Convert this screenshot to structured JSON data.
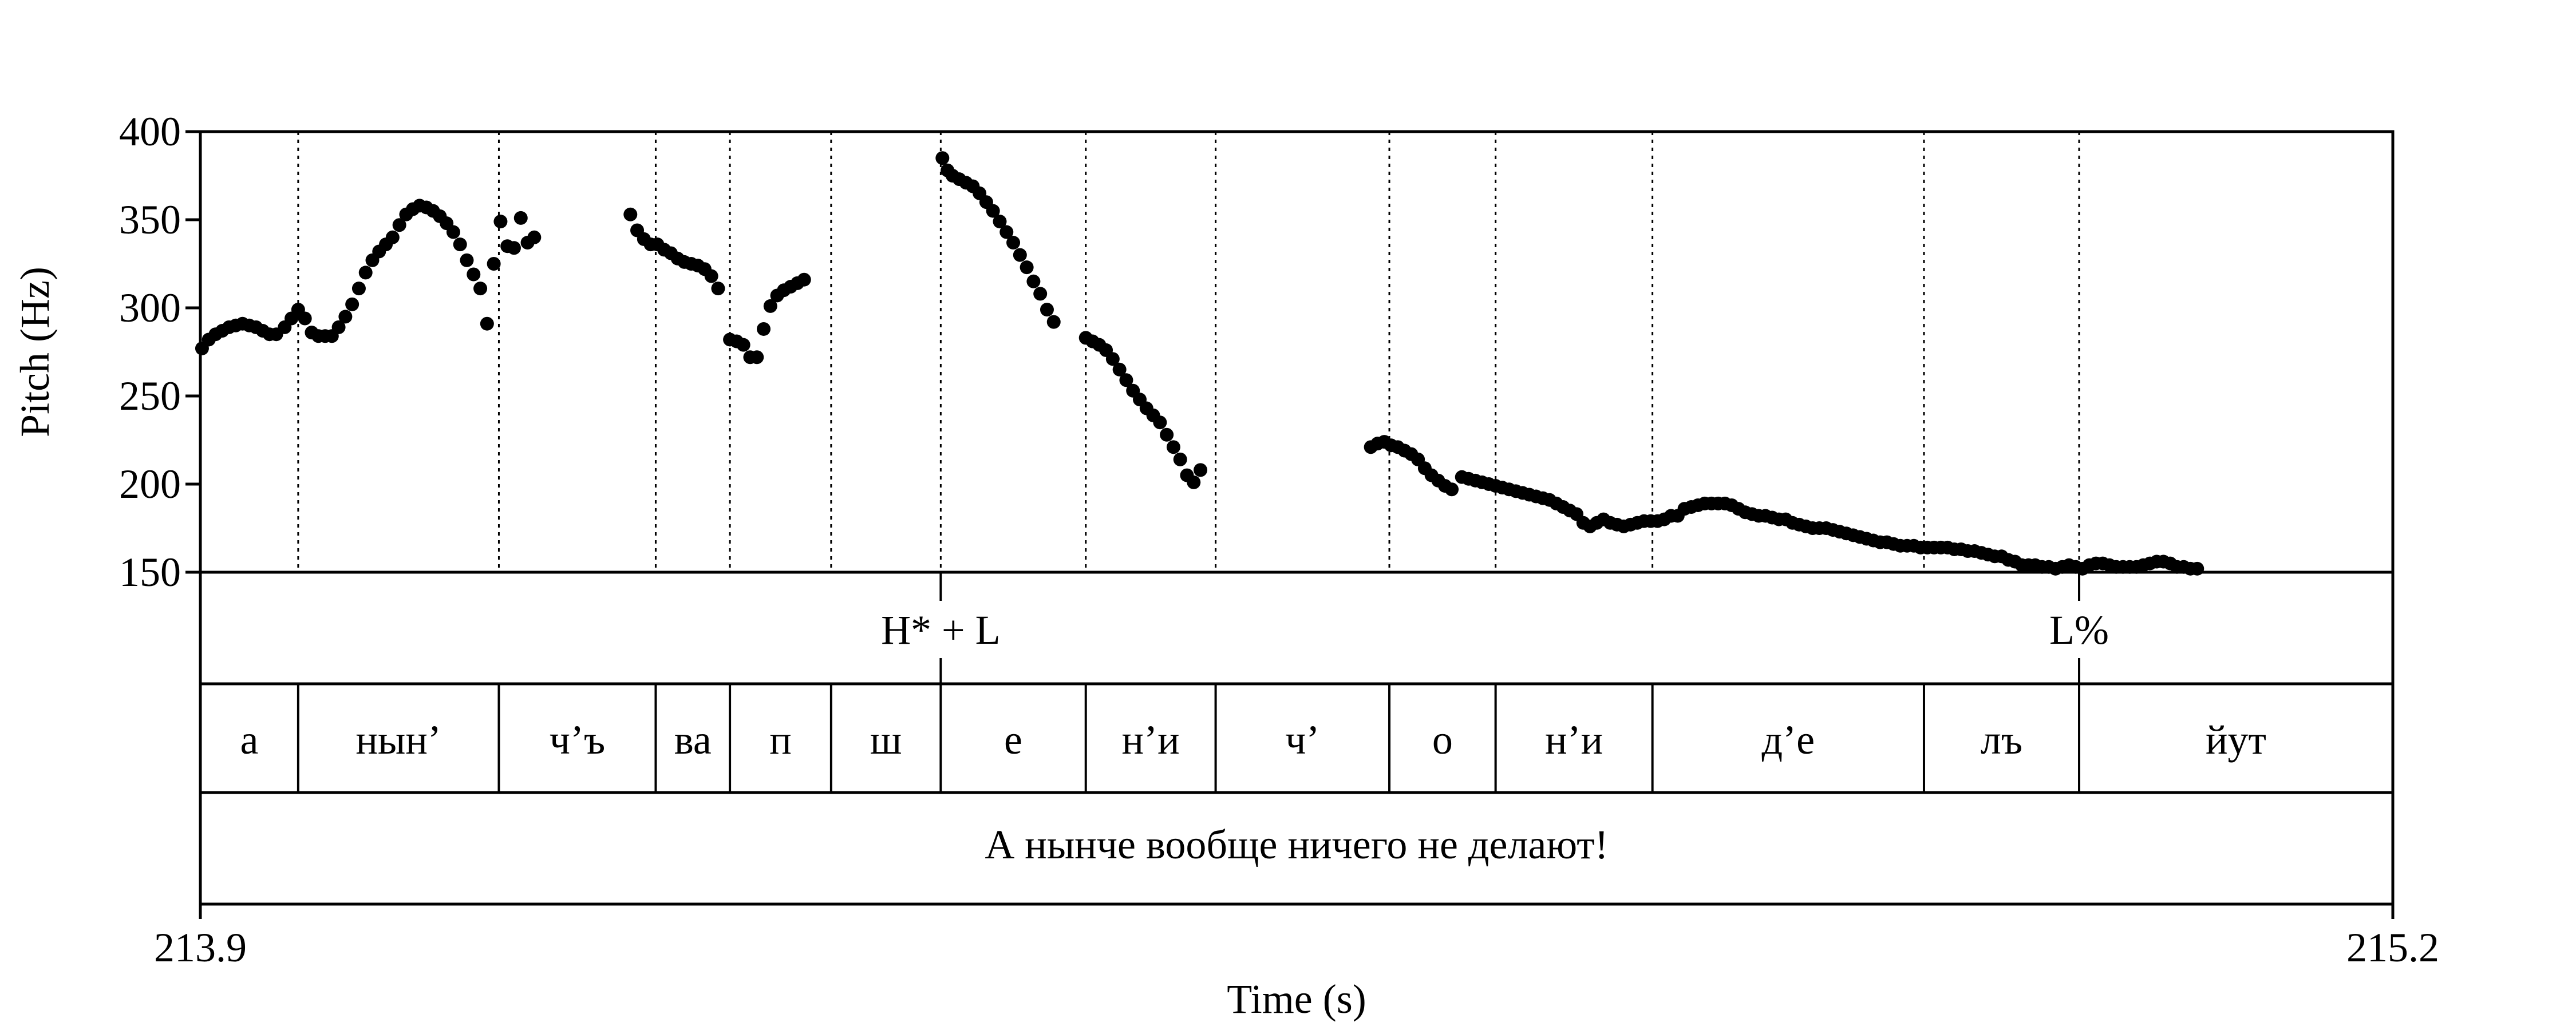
{
  "chart_data": {
    "type": "scatter",
    "xlabel": "Time (s)",
    "ylabel": "Pitch (Hz)",
    "xlim": [
      213.9,
      215.2
    ],
    "ylim": [
      150,
      400
    ],
    "yticks": [
      150,
      200,
      250,
      300,
      350,
      400
    ],
    "xtick_labels": [
      "213.9",
      "215.2"
    ],
    "marker_color": "#000000",
    "boundaries": [
      213.958,
      214.077,
      214.17,
      214.214,
      214.274,
      214.339,
      214.425,
      214.502,
      214.605,
      214.668,
      214.761,
      214.922,
      215.014
    ],
    "tones": [
      {
        "time": 214.339,
        "label": "H* + L"
      },
      {
        "time": 215.014,
        "label": "L%"
      }
    ],
    "segments": [
      {
        "start": 213.9,
        "end": 213.958,
        "label": "а"
      },
      {
        "start": 213.958,
        "end": 214.077,
        "label": "нын’"
      },
      {
        "start": 214.077,
        "end": 214.17,
        "label": "ч’ъ"
      },
      {
        "start": 214.17,
        "end": 214.214,
        "label": "ва"
      },
      {
        "start": 214.214,
        "end": 214.274,
        "label": "п"
      },
      {
        "start": 214.274,
        "end": 214.339,
        "label": "ш"
      },
      {
        "start": 214.339,
        "end": 214.425,
        "label": "е"
      },
      {
        "start": 214.425,
        "end": 214.502,
        "label": "н’и"
      },
      {
        "start": 214.502,
        "end": 214.605,
        "label": "ч’"
      },
      {
        "start": 214.605,
        "end": 214.668,
        "label": "о"
      },
      {
        "start": 214.668,
        "end": 214.761,
        "label": "н’и"
      },
      {
        "start": 214.761,
        "end": 214.922,
        "label": "д’е"
      },
      {
        "start": 214.922,
        "end": 215.014,
        "label": "лъ"
      },
      {
        "start": 215.014,
        "end": 215.2,
        "label": "йут"
      }
    ],
    "sentence": "А нынче вообще ничего не делают!",
    "pitch_points": [
      [
        213.901,
        277
      ],
      [
        213.905,
        282
      ],
      [
        213.909,
        285
      ],
      [
        213.913,
        287
      ],
      [
        213.917,
        289
      ],
      [
        213.921,
        290
      ],
      [
        213.925,
        291
      ],
      [
        213.929,
        290
      ],
      [
        213.933,
        289
      ],
      [
        213.937,
        287
      ],
      [
        213.941,
        285
      ],
      [
        213.945,
        285
      ],
      [
        213.95,
        289
      ],
      [
        213.954,
        294
      ],
      [
        213.958,
        299
      ],
      [
        213.962,
        294
      ],
      [
        213.966,
        286
      ],
      [
        213.97,
        284
      ],
      [
        213.974,
        284
      ],
      [
        213.978,
        284
      ],
      [
        213.982,
        289
      ],
      [
        213.986,
        295
      ],
      [
        213.99,
        302
      ],
      [
        213.994,
        311
      ],
      [
        213.998,
        320
      ],
      [
        214.002,
        327
      ],
      [
        214.006,
        332
      ],
      [
        214.01,
        336
      ],
      [
        214.014,
        340
      ],
      [
        214.018,
        347
      ],
      [
        214.022,
        353
      ],
      [
        214.026,
        356
      ],
      [
        214.03,
        358
      ],
      [
        214.034,
        357
      ],
      [
        214.038,
        355
      ],
      [
        214.042,
        352
      ],
      [
        214.046,
        348
      ],
      [
        214.05,
        343
      ],
      [
        214.054,
        336
      ],
      [
        214.058,
        327
      ],
      [
        214.062,
        319
      ],
      [
        214.066,
        311
      ],
      [
        214.07,
        291
      ],
      [
        214.074,
        325
      ],
      [
        214.078,
        349
      ],
      [
        214.082,
        335
      ],
      [
        214.086,
        334
      ],
      [
        214.09,
        351
      ],
      [
        214.094,
        337
      ],
      [
        214.098,
        340
      ],
      [
        214.155,
        353
      ],
      [
        214.159,
        344
      ],
      [
        214.163,
        339
      ],
      [
        214.167,
        336
      ],
      [
        214.171,
        336
      ],
      [
        214.175,
        333
      ],
      [
        214.179,
        331
      ],
      [
        214.183,
        328
      ],
      [
        214.187,
        326
      ],
      [
        214.191,
        325
      ],
      [
        214.195,
        324
      ],
      [
        214.199,
        322
      ],
      [
        214.203,
        318
      ],
      [
        214.207,
        311
      ],
      [
        214.214,
        282
      ],
      [
        214.218,
        281
      ],
      [
        214.222,
        279
      ],
      [
        214.226,
        272
      ],
      [
        214.23,
        272
      ],
      [
        214.234,
        288
      ],
      [
        214.238,
        301
      ],
      [
        214.242,
        307
      ],
      [
        214.246,
        310
      ],
      [
        214.25,
        312
      ],
      [
        214.254,
        314
      ],
      [
        214.258,
        316
      ],
      [
        214.34,
        385
      ],
      [
        214.343,
        378
      ],
      [
        214.346,
        375
      ],
      [
        214.35,
        373
      ],
      [
        214.354,
        371
      ],
      [
        214.358,
        369
      ],
      [
        214.362,
        365
      ],
      [
        214.366,
        360
      ],
      [
        214.37,
        355
      ],
      [
        214.374,
        349
      ],
      [
        214.378,
        343
      ],
      [
        214.382,
        337
      ],
      [
        214.386,
        330
      ],
      [
        214.39,
        323
      ],
      [
        214.394,
        315
      ],
      [
        214.398,
        308
      ],
      [
        214.402,
        299
      ],
      [
        214.406,
        292
      ],
      [
        214.425,
        283
      ],
      [
        214.429,
        281
      ],
      [
        214.433,
        279
      ],
      [
        214.437,
        276
      ],
      [
        214.441,
        271
      ],
      [
        214.445,
        265
      ],
      [
        214.449,
        259
      ],
      [
        214.453,
        253
      ],
      [
        214.457,
        248
      ],
      [
        214.461,
        243
      ],
      [
        214.465,
        239
      ],
      [
        214.469,
        235
      ],
      [
        214.473,
        228
      ],
      [
        214.477,
        221
      ],
      [
        214.481,
        214
      ],
      [
        214.485,
        205
      ],
      [
        214.489,
        201
      ],
      [
        214.493,
        208
      ],
      [
        214.594,
        221
      ],
      [
        214.598,
        223
      ],
      [
        214.602,
        224
      ],
      [
        214.606,
        222
      ],
      [
        214.61,
        221
      ],
      [
        214.614,
        219
      ],
      [
        214.618,
        217
      ],
      [
        214.622,
        214
      ],
      [
        214.626,
        209
      ],
      [
        214.63,
        205
      ],
      [
        214.634,
        202
      ],
      [
        214.638,
        199
      ],
      [
        214.642,
        197
      ],
      [
        214.648,
        204
      ],
      [
        214.652,
        203
      ],
      [
        214.656,
        202
      ],
      [
        214.66,
        201
      ],
      [
        214.664,
        200
      ],
      [
        214.668,
        199
      ],
      [
        214.672,
        198
      ],
      [
        214.676,
        197
      ],
      [
        214.68,
        196
      ],
      [
        214.684,
        195
      ],
      [
        214.688,
        194
      ],
      [
        214.692,
        193
      ],
      [
        214.696,
        192
      ],
      [
        214.7,
        191
      ],
      [
        214.704,
        189
      ],
      [
        214.708,
        187
      ],
      [
        214.712,
        185
      ],
      [
        214.716,
        183
      ],
      [
        214.72,
        178
      ],
      [
        214.724,
        176
      ],
      [
        214.728,
        178
      ],
      [
        214.732,
        180
      ],
      [
        214.736,
        178
      ],
      [
        214.74,
        177
      ],
      [
        214.744,
        176
      ],
      [
        214.748,
        177
      ],
      [
        214.752,
        178
      ],
      [
        214.756,
        179
      ],
      [
        214.76,
        179
      ],
      [
        214.764,
        179
      ],
      [
        214.768,
        180
      ],
      [
        214.772,
        182
      ],
      [
        214.776,
        182
      ],
      [
        214.78,
        186
      ],
      [
        214.784,
        187
      ],
      [
        214.788,
        188
      ],
      [
        214.792,
        189
      ],
      [
        214.796,
        189
      ],
      [
        214.8,
        189
      ],
      [
        214.804,
        189
      ],
      [
        214.808,
        188
      ],
      [
        214.812,
        186
      ],
      [
        214.816,
        184
      ],
      [
        214.82,
        183
      ],
      [
        214.824,
        182
      ],
      [
        214.828,
        182
      ],
      [
        214.832,
        181
      ],
      [
        214.836,
        180
      ],
      [
        214.84,
        180
      ],
      [
        214.844,
        178
      ],
      [
        214.848,
        177
      ],
      [
        214.852,
        176
      ],
      [
        214.856,
        175
      ],
      [
        214.86,
        175
      ],
      [
        214.864,
        175
      ],
      [
        214.868,
        174
      ],
      [
        214.872,
        173
      ],
      [
        214.876,
        172
      ],
      [
        214.88,
        171
      ],
      [
        214.884,
        170
      ],
      [
        214.888,
        169
      ],
      [
        214.892,
        168
      ],
      [
        214.896,
        167
      ],
      [
        214.9,
        167
      ],
      [
        214.904,
        166
      ],
      [
        214.908,
        165
      ],
      [
        214.912,
        165
      ],
      [
        214.916,
        165
      ],
      [
        214.92,
        164
      ],
      [
        214.924,
        164
      ],
      [
        214.928,
        164
      ],
      [
        214.932,
        164
      ],
      [
        214.936,
        164
      ],
      [
        214.94,
        163
      ],
      [
        214.944,
        163
      ],
      [
        214.948,
        162
      ],
      [
        214.952,
        162
      ],
      [
        214.956,
        161
      ],
      [
        214.96,
        160
      ],
      [
        214.964,
        159
      ],
      [
        214.968,
        159
      ],
      [
        214.972,
        157
      ],
      [
        214.976,
        156
      ],
      [
        214.98,
        154
      ],
      [
        214.984,
        154
      ],
      [
        214.988,
        154
      ],
      [
        214.992,
        153
      ],
      [
        214.996,
        153
      ],
      [
        215.0,
        152
      ],
      [
        215.004,
        153
      ],
      [
        215.008,
        154
      ],
      [
        215.012,
        153
      ],
      [
        215.016,
        152
      ],
      [
        215.02,
        154
      ],
      [
        215.024,
        155
      ],
      [
        215.028,
        155
      ],
      [
        215.032,
        154
      ],
      [
        215.036,
        153
      ],
      [
        215.04,
        153
      ],
      [
        215.044,
        153
      ],
      [
        215.048,
        153
      ],
      [
        215.052,
        154
      ],
      [
        215.056,
        155
      ],
      [
        215.06,
        156
      ],
      [
        215.064,
        156
      ],
      [
        215.068,
        155
      ],
      [
        215.072,
        153
      ],
      [
        215.076,
        153
      ],
      [
        215.08,
        152
      ],
      [
        215.084,
        152
      ]
    ]
  }
}
